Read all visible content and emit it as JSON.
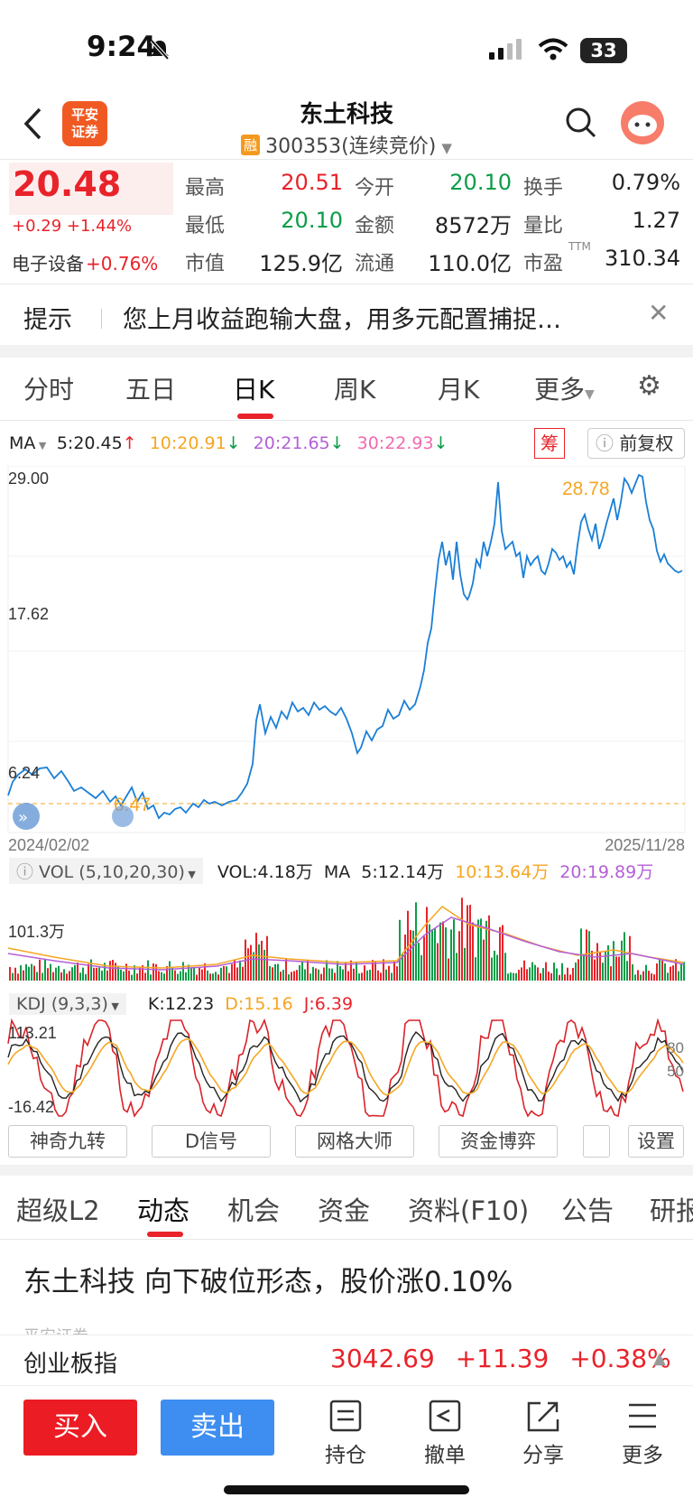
{
  "status_bar": {
    "time": "9:24",
    "battery": "33"
  },
  "header": {
    "title": "东土科技",
    "rong_badge": "融",
    "subtitle": "300353(连续竞价)",
    "logo_text_1": "平安",
    "logo_text_2": "证券"
  },
  "quote": {
    "price": "20.48",
    "change": "+0.29 +1.44%",
    "sector_name": "电子设备",
    "sector_change": "+0.76%",
    "fields": [
      {
        "label": "最高",
        "value": "20.51",
        "color": "red"
      },
      {
        "label": "今开",
        "value": "20.10",
        "color": "green"
      },
      {
        "label": "换手",
        "value": "0.79%",
        "color": "black"
      },
      {
        "label": "最低",
        "value": "20.10",
        "color": "green"
      },
      {
        "label": "金额",
        "value": "8572万",
        "color": "black"
      },
      {
        "label": "量比",
        "value": "1.27",
        "color": "black"
      },
      {
        "label": "市值",
        "value": "125.9亿",
        "color": "black"
      },
      {
        "label": "流通",
        "value": "110.0亿",
        "color": "black"
      },
      {
        "label": "市盈",
        "value": "310.34",
        "color": "black"
      }
    ],
    "ttm": "TTM"
  },
  "tip": {
    "label": "提示",
    "text": "您上月收益跑输大盘，用多元配置捕捉…"
  },
  "period_tabs": [
    {
      "label": "分时"
    },
    {
      "label": "五日"
    },
    {
      "label": "日K"
    },
    {
      "label": "周K"
    },
    {
      "label": "月K"
    },
    {
      "label": "更多"
    }
  ],
  "ma_row": {
    "label": "MA",
    "ma5": "5:20.45",
    "ma10": "10:20.91",
    "ma20": "20:21.65",
    "ma30": "30:22.93",
    "chou": "筹",
    "fuquan": "前复权"
  },
  "chart": {
    "y_top": "29.00",
    "y_mid": "17.62",
    "y_bottom": "6.24",
    "max_label": "28.78",
    "min_label": "6.47",
    "date_start": "2024/02/02",
    "date_end": "2025/11/28"
  },
  "vol_row": {
    "label": "VOL (5,10,20,30)",
    "vol": "VOL:4.18万",
    "ma": "MA",
    "ma5": "5:12.14万",
    "ma10": "10:13.64万",
    "ma20": "20:19.89万",
    "y_label": "101.3万"
  },
  "kdj_row": {
    "label": "KDJ (9,3,3)",
    "k": "K:12.23",
    "d": "D:15.16",
    "j": "J:6.39",
    "y_top": "113.21",
    "y_bottom": "-16.42",
    "r80": "80",
    "r50": "50"
  },
  "indicator_buttons": [
    "神奇九转",
    "D信号",
    "网格大师",
    "资金博弈"
  ],
  "settings_label": "设置",
  "news_tabs": [
    "超级L2",
    "动态",
    "机会",
    "资金",
    "资料(F10)",
    "公告",
    "研报"
  ],
  "news": {
    "title": "东土科技 向下破位形态，股价涨0.10%",
    "source": "平安证券"
  },
  "index_bar": {
    "name": "创业板指",
    "value": "3042.69",
    "change": "+11.39",
    "pct": "+0.38%"
  },
  "bottom_bar": {
    "buy": "买入",
    "sell": "卖出",
    "items": [
      {
        "label": "持仓"
      },
      {
        "label": "撤单"
      },
      {
        "label": "分享"
      },
      {
        "label": "更多"
      }
    ]
  },
  "colors": {
    "up": "#e8232a",
    "down": "#0a9d48",
    "price_line": "#1a7fd6",
    "ma10": "#f5a623",
    "ma20": "#b45fd6",
    "ma30": "#f06ab0"
  }
}
